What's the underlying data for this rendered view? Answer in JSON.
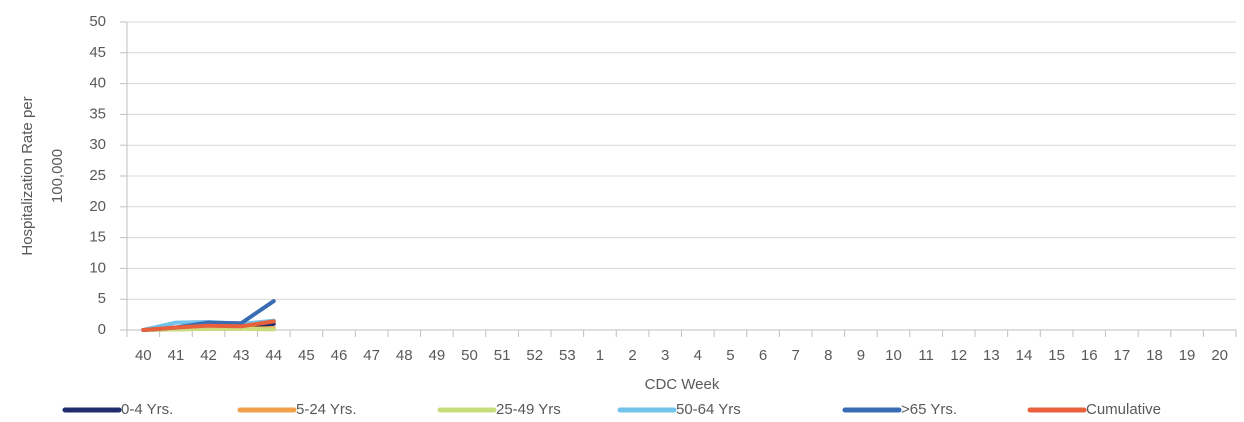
{
  "chart_data": {
    "type": "line",
    "y_label": [
      "Hospitalization Rate per",
      "100,000"
    ],
    "x_label": "CDC Week",
    "categories": [
      "40",
      "41",
      "42",
      "43",
      "44",
      "45",
      "46",
      "47",
      "48",
      "49",
      "50",
      "51",
      "52",
      "53",
      "1",
      "2",
      "3",
      "4",
      "5",
      "6",
      "7",
      "8",
      "9",
      "10",
      "11",
      "12",
      "13",
      "14",
      "15",
      "16",
      "17",
      "18",
      "19",
      "20"
    ],
    "series": [
      {
        "name": "0-4 Yrs.",
        "color": "#1f2d6e",
        "values": [
          0,
          0.2,
          0.5,
          0.5,
          1.0,
          null,
          null,
          null,
          null,
          null,
          null,
          null,
          null,
          null,
          null,
          null,
          null,
          null,
          null,
          null,
          null,
          null,
          null,
          null,
          null,
          null,
          null,
          null,
          null,
          null,
          null,
          null,
          null,
          null
        ]
      },
      {
        "name": "5-24 Yrs.",
        "color": "#f0a04b",
        "values": [
          0,
          0.1,
          0.2,
          0.2,
          0.3,
          null,
          null,
          null,
          null,
          null,
          null,
          null,
          null,
          null,
          null,
          null,
          null,
          null,
          null,
          null,
          null,
          null,
          null,
          null,
          null,
          null,
          null,
          null,
          null,
          null,
          null,
          null,
          null,
          null
        ]
      },
      {
        "name": "25-49 Yrs",
        "color": "#c9dc7c",
        "values": [
          0,
          0.1,
          0.2,
          0.2,
          0.1,
          null,
          null,
          null,
          null,
          null,
          null,
          null,
          null,
          null,
          null,
          null,
          null,
          null,
          null,
          null,
          null,
          null,
          null,
          null,
          null,
          null,
          null,
          null,
          null,
          null,
          null,
          null,
          null,
          null
        ]
      },
      {
        "name": "50-64 Yrs",
        "color": "#72c2ea",
        "values": [
          0,
          1.2,
          1.3,
          1.0,
          1.5,
          null,
          null,
          null,
          null,
          null,
          null,
          null,
          null,
          null,
          null,
          null,
          null,
          null,
          null,
          null,
          null,
          null,
          null,
          null,
          null,
          null,
          null,
          null,
          null,
          null,
          null,
          null,
          null,
          null
        ]
      },
      {
        "name": ">65 Yrs.",
        "color": "#3a6cb4",
        "values": [
          0,
          0.4,
          1.2,
          1.1,
          4.7,
          null,
          null,
          null,
          null,
          null,
          null,
          null,
          null,
          null,
          null,
          null,
          null,
          null,
          null,
          null,
          null,
          null,
          null,
          null,
          null,
          null,
          null,
          null,
          null,
          null,
          null,
          null,
          null,
          null
        ]
      },
      {
        "name": "Cumulative",
        "color": "#e8603c",
        "values": [
          0,
          0.4,
          0.7,
          0.6,
          1.4,
          null,
          null,
          null,
          null,
          null,
          null,
          null,
          null,
          null,
          null,
          null,
          null,
          null,
          null,
          null,
          null,
          null,
          null,
          null,
          null,
          null,
          null,
          null,
          null,
          null,
          null,
          null,
          null,
          null
        ]
      }
    ],
    "ylim": [
      0,
      50
    ],
    "yticks": [
      0,
      5,
      10,
      15,
      20,
      25,
      30,
      35,
      40,
      45,
      50
    ],
    "grid": true
  }
}
